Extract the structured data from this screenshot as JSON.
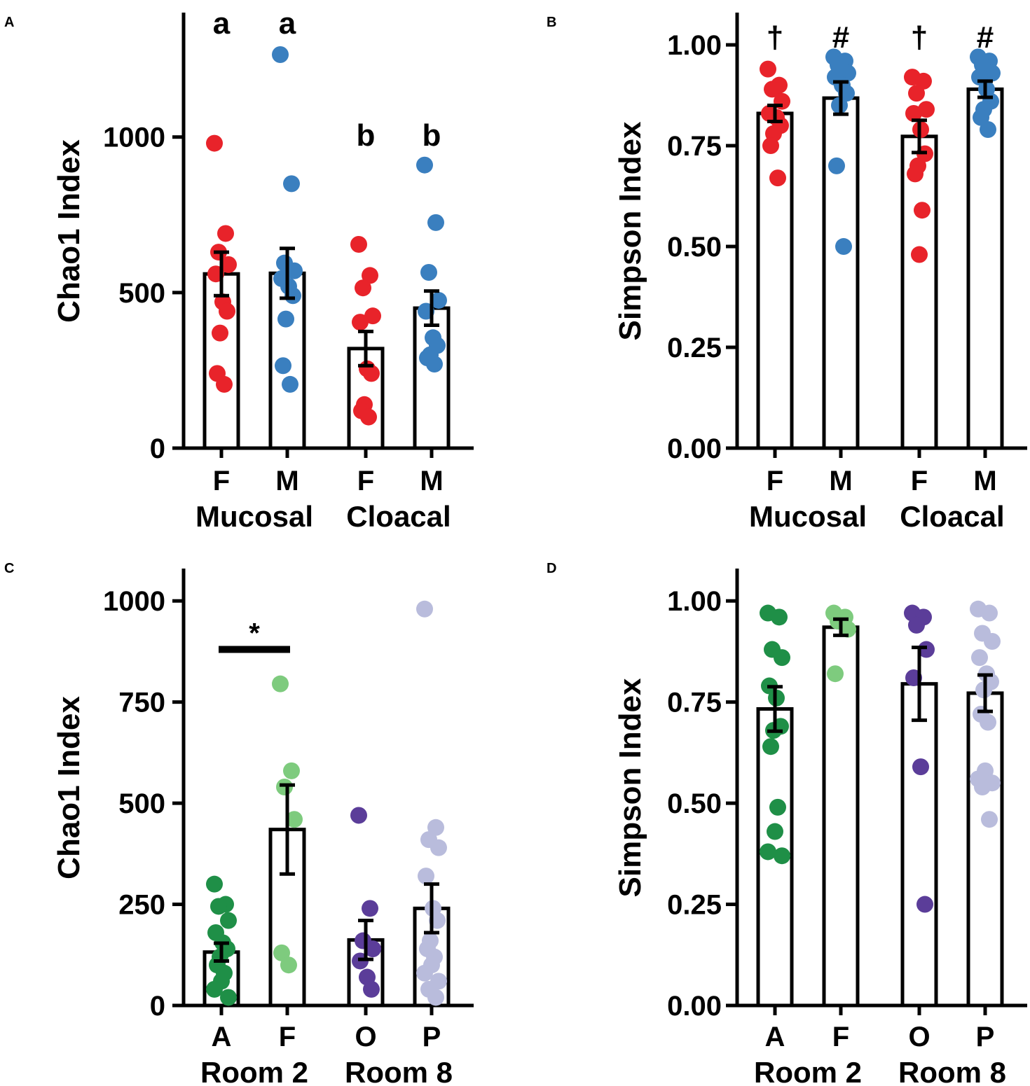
{
  "figure": {
    "panel_count": 4
  },
  "chart_data": [
    {
      "panel": "A",
      "type": "bar",
      "ylabel": "Chao1 Index",
      "ylim": [
        0,
        1400
      ],
      "yticks": [
        0,
        500,
        1000
      ],
      "categories": [
        "F",
        "M",
        "F",
        "M"
      ],
      "groups": [
        {
          "label": "Mucosal",
          "span": [
            0,
            1
          ]
        },
        {
          "label": "Cloacal",
          "span": [
            2,
            3
          ]
        }
      ],
      "bars": [
        {
          "category": "F",
          "mean": 560,
          "sem": 70,
          "color": "#e8232a",
          "annotation": "a",
          "points": [
            980,
            690,
            630,
            590,
            560,
            470,
            440,
            370,
            240,
            205
          ]
        },
        {
          "category": "M",
          "mean": 562,
          "sem": 80,
          "color": "#3a7fbf",
          "annotation": "a",
          "points": [
            1265,
            850,
            595,
            570,
            545,
            520,
            490,
            415,
            265,
            205
          ]
        },
        {
          "category": "F",
          "mean": 320,
          "sem": 55,
          "color": "#e8232a",
          "annotation": "b",
          "points": [
            655,
            555,
            515,
            425,
            405,
            255,
            240,
            140,
            120,
            100
          ]
        },
        {
          "category": "M",
          "mean": 450,
          "sem": 55,
          "color": "#3a7fbf",
          "annotation": "b",
          "points": [
            910,
            725,
            565,
            475,
            440,
            355,
            330,
            300,
            290,
            270
          ]
        }
      ]
    },
    {
      "panel": "B",
      "type": "bar",
      "ylabel": "Simpson Index",
      "ylim": [
        0,
        1.08
      ],
      "yticks": [
        "0.00",
        "0.25",
        "0.50",
        "0.75",
        "1.00"
      ],
      "categories": [
        "F",
        "M",
        "F",
        "M"
      ],
      "groups": [
        {
          "label": "Mucosal",
          "span": [
            0,
            1
          ]
        },
        {
          "label": "Cloacal",
          "span": [
            2,
            3
          ]
        }
      ],
      "bars": [
        {
          "category": "F",
          "mean": 0.83,
          "sem": 0.02,
          "color": "#e8232a",
          "annotation": "†",
          "points": [
            0.94,
            0.9,
            0.89,
            0.86,
            0.83,
            0.82,
            0.8,
            0.78,
            0.75,
            0.67
          ]
        },
        {
          "category": "M",
          "mean": 0.868,
          "sem": 0.04,
          "color": "#3a7fbf",
          "annotation": "#",
          "points": [
            0.97,
            0.96,
            0.95,
            0.93,
            0.92,
            0.9,
            0.88,
            0.85,
            0.7,
            0.5
          ]
        },
        {
          "category": "F",
          "mean": 0.773,
          "sem": 0.04,
          "color": "#e8232a",
          "annotation": "†",
          "points": [
            0.92,
            0.91,
            0.88,
            0.84,
            0.83,
            0.79,
            0.73,
            0.7,
            0.68,
            0.59,
            0.48
          ]
        },
        {
          "category": "M",
          "mean": 0.89,
          "sem": 0.02,
          "color": "#3a7fbf",
          "annotation": "#",
          "points": [
            0.97,
            0.96,
            0.95,
            0.93,
            0.92,
            0.89,
            0.86,
            0.84,
            0.82,
            0.79
          ]
        }
      ]
    },
    {
      "panel": "C",
      "type": "bar",
      "ylabel": "Chao1 Index",
      "ylim": [
        0,
        1080
      ],
      "yticks": [
        0,
        250,
        500,
        750,
        1000
      ],
      "categories": [
        "A",
        "F",
        "O",
        "P"
      ],
      "groups": [
        {
          "label": "Room 2",
          "span": [
            0,
            1
          ]
        },
        {
          "label": "Room 8",
          "span": [
            2,
            3
          ]
        }
      ],
      "significance": {
        "label": "*",
        "from": 0,
        "to": 1,
        "y": 880
      },
      "bars": [
        {
          "category": "A",
          "mean": 132,
          "sem": 22,
          "color": "#1f8f47",
          "annotation": "",
          "points": [
            300,
            250,
            245,
            210,
            180,
            155,
            140,
            120,
            100,
            80,
            60,
            40,
            20
          ]
        },
        {
          "category": "F",
          "mean": 435,
          "sem": 110,
          "color": "#7ecb7e",
          "annotation": "",
          "points": [
            795,
            580,
            540,
            460,
            130,
            100
          ]
        },
        {
          "category": "O",
          "mean": 162,
          "sem": 48,
          "color": "#5b3d99",
          "annotation": "",
          "points": [
            470,
            240,
            160,
            140,
            110,
            70,
            40
          ]
        },
        {
          "category": "P",
          "mean": 240,
          "sem": 60,
          "color": "#b9bcdc",
          "annotation": "",
          "points": [
            980,
            440,
            410,
            390,
            320,
            240,
            210,
            160,
            140,
            120,
            100,
            80,
            60,
            40,
            20
          ]
        }
      ]
    },
    {
      "panel": "D",
      "type": "bar",
      "ylabel": "Simpson Index",
      "ylim": [
        0,
        1.08
      ],
      "yticks": [
        "0.00",
        "0.25",
        "0.50",
        "0.75",
        "1.00"
      ],
      "categories": [
        "A",
        "F",
        "O",
        "P"
      ],
      "groups": [
        {
          "label": "Room 2",
          "span": [
            0,
            1
          ]
        },
        {
          "label": "Room 8",
          "span": [
            2,
            3
          ]
        }
      ],
      "bars": [
        {
          "category": "A",
          "mean": 0.733,
          "sem": 0.055,
          "color": "#1f8f47",
          "annotation": "",
          "points": [
            0.97,
            0.96,
            0.88,
            0.86,
            0.79,
            0.76,
            0.69,
            0.68,
            0.64,
            0.49,
            0.43,
            0.38,
            0.37
          ]
        },
        {
          "category": "F",
          "mean": 0.935,
          "sem": 0.02,
          "color": "#7ecb7e",
          "annotation": "",
          "points": [
            0.97,
            0.96,
            0.95,
            0.93,
            0.82
          ]
        },
        {
          "category": "O",
          "mean": 0.795,
          "sem": 0.09,
          "color": "#5b3d99",
          "annotation": "",
          "points": [
            0.97,
            0.96,
            0.94,
            0.88,
            0.81,
            0.59,
            0.25
          ]
        },
        {
          "category": "P",
          "mean": 0.772,
          "sem": 0.045,
          "color": "#b9bcdc",
          "annotation": "",
          "points": [
            0.98,
            0.97,
            0.92,
            0.9,
            0.86,
            0.82,
            0.8,
            0.78,
            0.72,
            0.7,
            0.58,
            0.56,
            0.55,
            0.54,
            0.46
          ]
        }
      ]
    }
  ]
}
